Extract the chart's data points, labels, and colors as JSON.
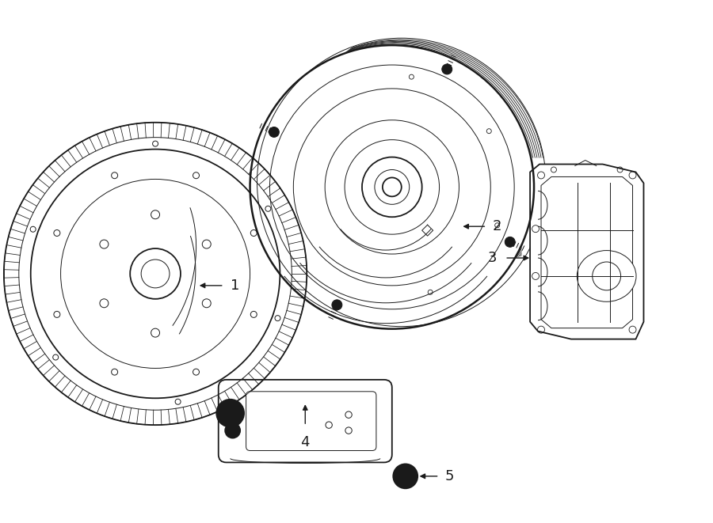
{
  "bg_color": "#ffffff",
  "line_color": "#1a1a1a",
  "fig_width": 9.0,
  "fig_height": 6.61,
  "dpi": 100,
  "lw_main": 1.3,
  "lw_thin": 0.7,
  "lw_thick": 1.8
}
